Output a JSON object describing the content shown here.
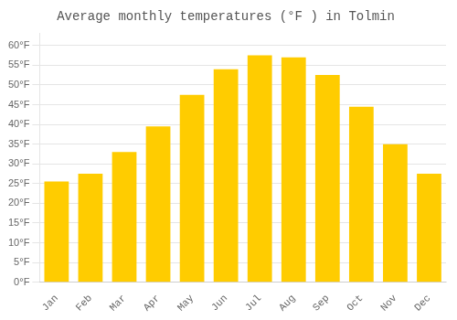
{
  "chart_data": {
    "type": "bar",
    "title": "Average monthly temperatures (°F ) in Tolmin",
    "categories": [
      "Jan",
      "Feb",
      "Mar",
      "Apr",
      "May",
      "Jun",
      "Jul",
      "Aug",
      "Sep",
      "Oct",
      "Nov",
      "Dec"
    ],
    "values": [
      25.5,
      27.5,
      33.0,
      39.5,
      47.5,
      54.0,
      57.5,
      57.0,
      52.5,
      44.5,
      35.0,
      27.5
    ],
    "color": "#FFCC00",
    "ylim": [
      0,
      63
    ],
    "yticks": [
      {
        "value": 0,
        "label": "0°F"
      },
      {
        "value": 5,
        "label": "5°F"
      },
      {
        "value": 10,
        "label": "10°F"
      },
      {
        "value": 15,
        "label": "15°F"
      },
      {
        "value": 20,
        "label": "20°F"
      },
      {
        "value": 25,
        "label": "25°F"
      },
      {
        "value": 30,
        "label": "30°F"
      },
      {
        "value": 35,
        "label": "35°F"
      },
      {
        "value": 40,
        "label": "40°F"
      },
      {
        "value": 45,
        "label": "45°F"
      },
      {
        "value": 50,
        "label": "50°F"
      },
      {
        "value": 55,
        "label": "55°F"
      },
      {
        "value": 60,
        "label": "60°F"
      }
    ],
    "grid": true
  }
}
